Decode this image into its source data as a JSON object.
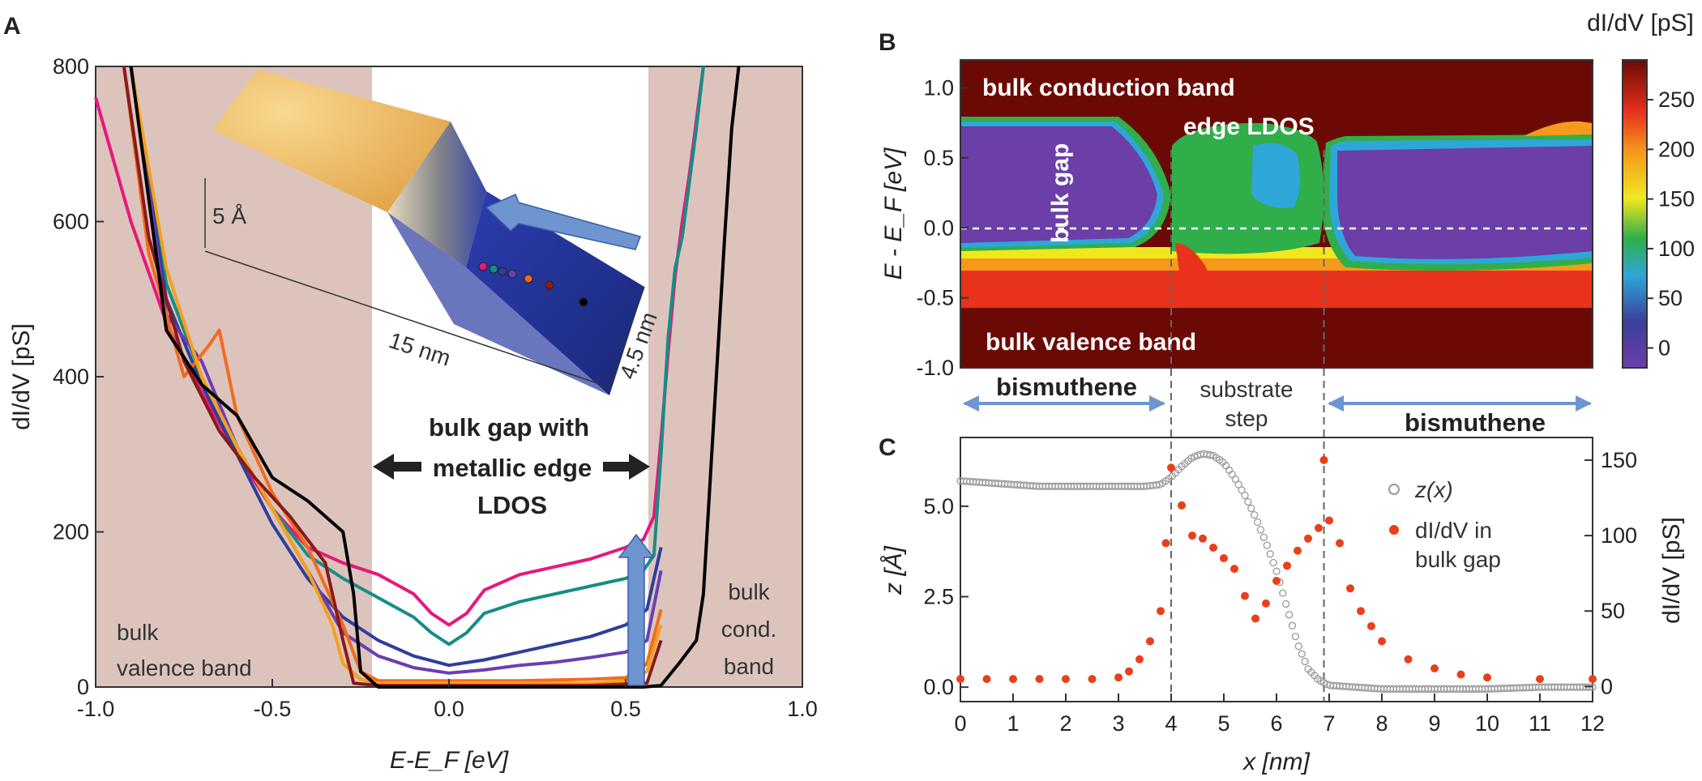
{
  "chart_data": [
    {
      "panel": "A",
      "type": "line",
      "xlabel": "E-E_F [eV]",
      "ylabel": "dI/dV [pS]",
      "xlim": [
        -1.0,
        1.0
      ],
      "ylim": [
        0,
        800
      ],
      "xticks": [
        "-1.0",
        "-0.5",
        "0.0",
        "0.5",
        "1.0"
      ],
      "yticks": [
        "0",
        "200",
        "400",
        "600",
        "800"
      ],
      "shaded_regions": [
        {
          "label": "bulk valence band",
          "x_range": [
            -1.0,
            -0.2
          ]
        },
        {
          "label": "bulk cond. band",
          "x_range": [
            0.6,
            1.0
          ]
        }
      ],
      "annotations": {
        "gap_label": [
          "bulk gap with",
          "metallic edge",
          "LDOS"
        ],
        "valence": [
          "bulk",
          "valence band"
        ],
        "conduction": [
          "bulk",
          "cond.",
          "band"
        ],
        "inset_height": "5 Å",
        "inset_length": "15 nm",
        "inset_width": "4.5 nm"
      },
      "series": [
        {
          "color": "#e8177d",
          "x": [
            -1.0,
            -0.9,
            -0.8,
            -0.7,
            -0.6,
            -0.5,
            -0.4,
            -0.3,
            -0.2,
            -0.1,
            -0.05,
            0.0,
            0.05,
            0.1,
            0.2,
            0.3,
            0.4,
            0.5,
            0.55,
            0.58,
            0.6,
            0.62,
            0.64,
            0.66,
            0.68,
            0.7,
            0.72
          ],
          "y": [
            760,
            600,
            470,
            380,
            300,
            230,
            180,
            160,
            145,
            120,
            95,
            80,
            95,
            125,
            145,
            155,
            165,
            180,
            190,
            220,
            320,
            430,
            530,
            600,
            660,
            730,
            800
          ]
        },
        {
          "color": "#178c86",
          "x": [
            -0.9,
            -0.8,
            -0.7,
            -0.6,
            -0.5,
            -0.4,
            -0.3,
            -0.2,
            -0.1,
            -0.05,
            0.0,
            0.05,
            0.1,
            0.2,
            0.3,
            0.4,
            0.5,
            0.55,
            0.58,
            0.6,
            0.62,
            0.64,
            0.66,
            0.68,
            0.7,
            0.72
          ],
          "y": [
            800,
            520,
            400,
            310,
            230,
            170,
            140,
            115,
            90,
            70,
            55,
            70,
            95,
            110,
            120,
            130,
            140,
            150,
            170,
            300,
            450,
            540,
            580,
            650,
            720,
            800
          ]
        },
        {
          "color": "#2d3f9a",
          "x": [
            -0.9,
            -0.8,
            -0.7,
            -0.6,
            -0.5,
            -0.4,
            -0.3,
            -0.2,
            -0.1,
            0.0,
            0.1,
            0.2,
            0.3,
            0.4,
            0.5,
            0.56,
            0.6
          ],
          "y": [
            800,
            500,
            390,
            300,
            210,
            140,
            90,
            60,
            40,
            28,
            35,
            45,
            55,
            65,
            80,
            100,
            180
          ]
        },
        {
          "color": "#6a3fb0",
          "x": [
            -0.9,
            -0.8,
            -0.7,
            -0.6,
            -0.5,
            -0.4,
            -0.3,
            -0.2,
            -0.1,
            0.0,
            0.1,
            0.2,
            0.3,
            0.4,
            0.5,
            0.56,
            0.6
          ],
          "y": [
            800,
            480,
            420,
            310,
            230,
            150,
            70,
            40,
            25,
            18,
            22,
            28,
            32,
            38,
            45,
            60,
            150
          ]
        },
        {
          "color": "#f26b1d",
          "x": [
            -0.92,
            -0.85,
            -0.75,
            -0.68,
            -0.65,
            -0.6,
            -0.5,
            -0.4,
            -0.3,
            -0.25,
            -0.2,
            0.0,
            0.2,
            0.4,
            0.5,
            0.56,
            0.6
          ],
          "y": [
            800,
            560,
            400,
            440,
            460,
            350,
            250,
            180,
            80,
            20,
            8,
            8,
            8,
            10,
            12,
            30,
            100
          ]
        },
        {
          "color": "#f5a11c",
          "x": [
            -0.9,
            -0.8,
            -0.7,
            -0.6,
            -0.5,
            -0.4,
            -0.33,
            -0.3,
            -0.25,
            -0.2,
            0.0,
            0.2,
            0.4,
            0.5,
            0.56,
            0.6
          ],
          "y": [
            800,
            540,
            400,
            310,
            230,
            150,
            80,
            30,
            10,
            5,
            5,
            5,
            5,
            8,
            20,
            80
          ]
        },
        {
          "color": "#8a1a1a",
          "x": [
            -0.92,
            -0.85,
            -0.75,
            -0.65,
            -0.55,
            -0.45,
            -0.35,
            -0.3,
            -0.27,
            -0.2,
            0.0,
            0.2,
            0.4,
            0.56,
            0.6
          ],
          "y": [
            800,
            580,
            420,
            330,
            270,
            220,
            160,
            60,
            5,
            2,
            2,
            2,
            2,
            5,
            60
          ]
        },
        {
          "color": "#000000",
          "x": [
            -0.9,
            -0.8,
            -0.7,
            -0.6,
            -0.5,
            -0.4,
            -0.3,
            -0.27,
            -0.25,
            -0.2,
            0.0,
            0.2,
            0.4,
            0.55,
            0.6,
            0.65,
            0.7,
            0.72,
            0.75,
            0.78,
            0.8,
            0.82
          ],
          "y": [
            800,
            460,
            390,
            350,
            270,
            240,
            200,
            120,
            20,
            0,
            0,
            0,
            0,
            0,
            2,
            30,
            60,
            120,
            350,
            580,
            720,
            800
          ]
        }
      ]
    },
    {
      "panel": "B",
      "type": "heatmap",
      "xlabel": "",
      "ylabel": "E - E_F [eV]",
      "ylim": [
        -1.0,
        1.2
      ],
      "yticks": [
        "-1.0",
        "-0.5",
        "0.0",
        "0.5",
        "1.0"
      ],
      "colorbar_label": "dI/dV [pS]",
      "colorbar_range": [
        -20,
        290
      ],
      "colorbar_ticks": [
        "0",
        "50",
        "100",
        "150",
        "200",
        "250"
      ],
      "labels": {
        "conduction": "bulk conduction band",
        "edge": "edge LDOS",
        "gap": "bulk gap",
        "valence": "bulk valence band"
      },
      "region_labels": {
        "left": "bismuthene",
        "middle": [
          "substrate",
          "step"
        ],
        "right": "bismuthene"
      }
    },
    {
      "panel": "C",
      "type": "scatter",
      "xlabel": "x [nm]",
      "ylabel": "z [Å]",
      "y2label": "dI/dV [pS]",
      "xlim": [
        0,
        12
      ],
      "ylim": [
        -0.4,
        6.9
      ],
      "y2lim": [
        -10,
        165
      ],
      "xticks": [
        "0",
        "1",
        "2",
        "3",
        "4",
        "5",
        "6",
        "7",
        "8",
        "9",
        "10",
        "11",
        "12"
      ],
      "yticks": [
        "0.0",
        "2.5",
        "5.0"
      ],
      "y2ticks": [
        "0",
        "50",
        "100",
        "150"
      ],
      "vlines": [
        4.0,
        6.9
      ],
      "series": [
        {
          "name": "z(x)",
          "color": "#999999",
          "x": [
            0,
            0.5,
            1,
            1.5,
            2,
            2.5,
            3,
            3.5,
            3.8,
            4.0,
            4.2,
            4.4,
            4.6,
            4.8,
            5.0,
            5.2,
            5.4,
            5.6,
            5.8,
            6.0,
            6.2,
            6.4,
            6.6,
            6.8,
            7.0,
            7.5,
            8,
            9,
            10,
            11,
            12
          ],
          "y": [
            5.7,
            5.65,
            5.6,
            5.55,
            5.55,
            5.55,
            5.55,
            5.55,
            5.6,
            5.8,
            6.1,
            6.35,
            6.45,
            6.4,
            6.2,
            5.8,
            5.3,
            4.7,
            4.0,
            3.2,
            2.2,
            1.2,
            0.5,
            0.2,
            0.05,
            0.0,
            -0.05,
            -0.05,
            -0.05,
            0.0,
            0.0
          ]
        },
        {
          "name": "dI/dV in bulk gap",
          "color": "#e8401c",
          "x": [
            0,
            0.5,
            1,
            1.5,
            2,
            2.5,
            3,
            3.2,
            3.4,
            3.6,
            3.8,
            3.9,
            4.0,
            4.2,
            4.4,
            4.6,
            4.8,
            5.0,
            5.2,
            5.4,
            5.6,
            5.8,
            6.0,
            6.2,
            6.4,
            6.6,
            6.8,
            6.9,
            7.0,
            7.2,
            7.4,
            7.6,
            7.8,
            8.0,
            8.5,
            9,
            9.5,
            10,
            11,
            12
          ],
          "y": [
            5,
            5,
            5,
            5,
            5,
            5,
            6,
            10,
            18,
            30,
            50,
            95,
            145,
            120,
            100,
            98,
            92,
            85,
            78,
            60,
            45,
            55,
            70,
            80,
            90,
            98,
            105,
            150,
            110,
            95,
            65,
            50,
            40,
            30,
            18,
            12,
            8,
            6,
            5,
            5
          ]
        }
      ],
      "legend": {
        "z": "z(x)",
        "didv": [
          "dI/dV in",
          "bulk gap"
        ]
      }
    }
  ]
}
